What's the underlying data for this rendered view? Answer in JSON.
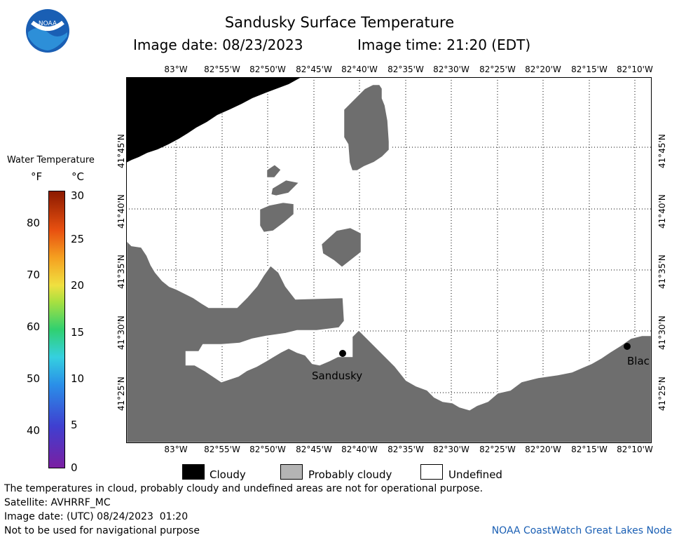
{
  "header": {
    "logo_text": "NOAA",
    "title": "Sandusky Surface Temperature",
    "image_date": "Image date: 08/23/2023",
    "image_time": "Image time: 21:20 (EDT)"
  },
  "map": {
    "lon_labels": [
      "83°W",
      "82°55'W",
      "82°50'W",
      "82°45'W",
      "82°40'W",
      "82°35'W",
      "82°30'W",
      "82°25'W",
      "82°20'W",
      "82°15'W",
      "82°10'W"
    ],
    "lat_labels": [
      "41°45'N",
      "41°40'N",
      "41°35'N",
      "41°30'N",
      "41°25'N"
    ],
    "places": [
      {
        "name": "Sandusky"
      },
      {
        "name": "Blac"
      }
    ],
    "colors": {
      "cloudy": "#000000",
      "probably_cloudy": "#6e6e6e",
      "undefined": "#ffffff"
    }
  },
  "scale": {
    "title": "Water Temperature",
    "unit_f": "°F",
    "unit_c": "°C",
    "f_ticks": [
      "80",
      "70",
      "60",
      "50",
      "40"
    ],
    "c_ticks": [
      "30",
      "25",
      "20",
      "15",
      "10",
      "5",
      "0"
    ]
  },
  "key": {
    "cloudy": "Cloudy",
    "probably_cloudy": "Probably cloudy",
    "undefined": "Undefined"
  },
  "footer": {
    "disclaimer": "The temperatures in cloud, probably cloudy and undefined areas are not for operational purpose.",
    "satellite": "Satellite: AVHRRF_MC",
    "utc_date": "Image date: (UTC) 08/24/2023  01:20",
    "nav_warning": "Not to be used for navigational purpose",
    "credit": "NOAA CoastWatch Great Lakes Node"
  }
}
